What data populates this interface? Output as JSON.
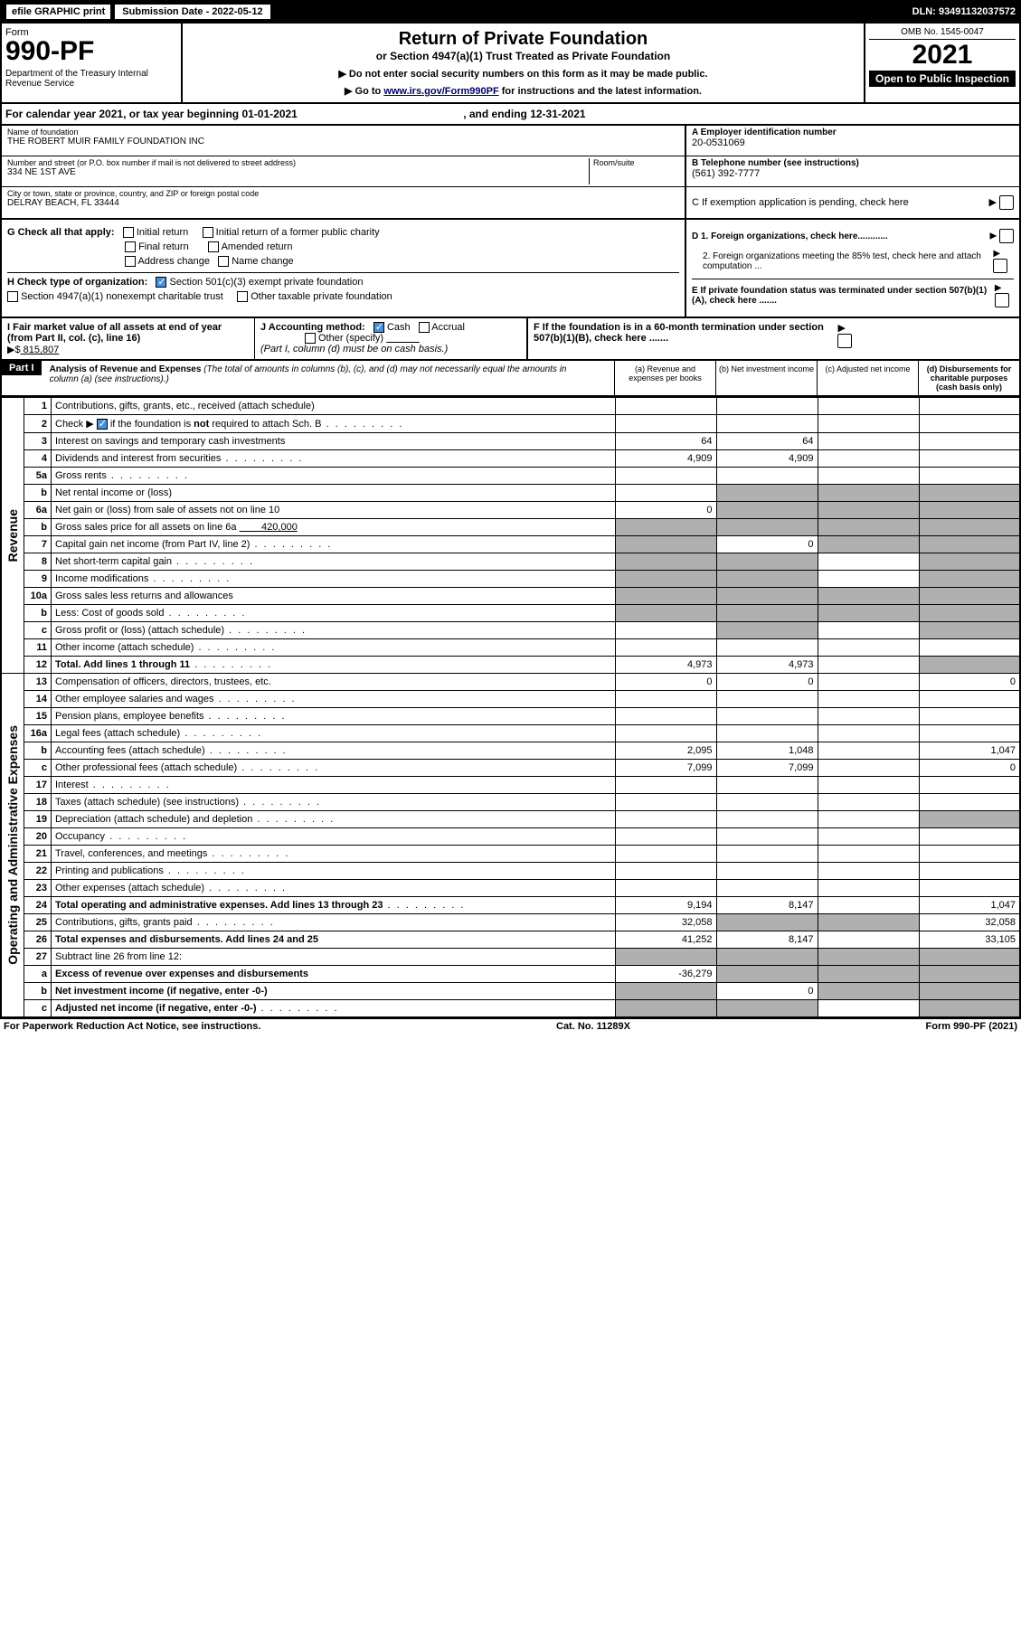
{
  "top": {
    "efile": "efile GRAPHIC print",
    "sub_label": "Submission Date - 2022-05-12",
    "dln": "DLN: 93491132037572"
  },
  "header": {
    "form_label": "Form",
    "form_num": "990-PF",
    "dept": "Department of the Treasury\nInternal Revenue Service",
    "title": "Return of Private Foundation",
    "subtitle": "or Section 4947(a)(1) Trust Treated as Private Foundation",
    "note1": "▶ Do not enter social security numbers on this form as it may be made public.",
    "note2_pre": "▶ Go to ",
    "note2_link": "www.irs.gov/Form990PF",
    "note2_post": " for instructions and the latest information.",
    "omb": "OMB No. 1545-0047",
    "year": "2021",
    "open": "Open to Public Inspection"
  },
  "cal_year": {
    "pre": "For calendar year 2021, or tax year beginning ",
    "begin": "01-01-2021",
    "mid": ", and ending ",
    "end": "12-31-2021"
  },
  "info": {
    "name_lbl": "Name of foundation",
    "name_val": "THE ROBERT MUIR FAMILY FOUNDATION INC",
    "addr_lbl": "Number and street (or P.O. box number if mail is not delivered to street address)",
    "addr_val": "334 NE 1ST AVE",
    "room_lbl": "Room/suite",
    "city_lbl": "City or town, state or province, country, and ZIP or foreign postal code",
    "city_val": "DELRAY BEACH, FL  33444",
    "ein_lbl": "A Employer identification number",
    "ein_val": "20-0531069",
    "tel_lbl": "B Telephone number (see instructions)",
    "tel_val": "(561) 392-7777",
    "c_lbl": "C If exemption application is pending, check here"
  },
  "g": {
    "label": "G Check all that apply:",
    "opts": [
      "Initial return",
      "Final return",
      "Address change",
      "Initial return of a former public charity",
      "Amended return",
      "Name change"
    ]
  },
  "h": {
    "label": "H Check type of organization:",
    "opt1": "Section 501(c)(3) exempt private foundation",
    "opt2": "Section 4947(a)(1) nonexempt charitable trust",
    "opt3": "Other taxable private foundation"
  },
  "i": {
    "label": "I Fair market value of all assets at end of year (from Part II, col. (c), line 16)",
    "arrow": "▶$",
    "val": "  815,807"
  },
  "j": {
    "label": "J Accounting method:",
    "cash": "Cash",
    "accrual": "Accrual",
    "other": "Other (specify)",
    "note": "(Part I, column (d) must be on cash basis.)"
  },
  "right_checks": {
    "d1": "D 1. Foreign organizations, check here............",
    "d2": "2. Foreign organizations meeting the 85% test, check here and attach computation ...",
    "e": "E  If private foundation status was terminated under section 507(b)(1)(A), check here .......",
    "f": "F  If the foundation is in a 60-month termination under section 507(b)(1)(B), check here .......",
    "c": "C If exemption application is pending, check here"
  },
  "part1": {
    "hdr": "Part I",
    "title": "Analysis of Revenue and Expenses",
    "title_note": " (The total of amounts in columns (b), (c), and (d) may not necessarily equal the amounts in column (a) (see instructions).)",
    "col_a": "(a) Revenue and expenses per books",
    "col_b": "(b) Net investment income",
    "col_c": "(c) Adjusted net income",
    "col_d": "(d) Disbursements for charitable purposes (cash basis only)"
  },
  "side": {
    "rev": "Revenue",
    "exp": "Operating and Administrative Expenses"
  },
  "rows": [
    {
      "n": "1",
      "t": "Contributions, gifts, grants, etc., received (attach schedule)",
      "a": "",
      "b": "",
      "c": "",
      "d": ""
    },
    {
      "n": "2",
      "t": "Check ▶ ☑ if the foundation is not required to attach Sch. B",
      "dots": true,
      "a": "",
      "b": "",
      "c": "",
      "d": ""
    },
    {
      "n": "3",
      "t": "Interest on savings and temporary cash investments",
      "a": "64",
      "b": "64",
      "c": "",
      "d": ""
    },
    {
      "n": "4",
      "t": "Dividends and interest from securities",
      "dots": true,
      "a": "4,909",
      "b": "4,909",
      "c": "",
      "d": ""
    },
    {
      "n": "5a",
      "t": "Gross rents",
      "dots": true,
      "a": "",
      "b": "",
      "c": "",
      "d": ""
    },
    {
      "n": "b",
      "t": "Net rental income or (loss)",
      "a": "",
      "b": "",
      "c": "",
      "d": "",
      "shade_bcd": true
    },
    {
      "n": "6a",
      "t": "Net gain or (loss) from sale of assets not on line 10",
      "a": "0",
      "b": "",
      "c": "",
      "d": "",
      "shade_bcd": true
    },
    {
      "n": "b",
      "t": "Gross sales price for all assets on line 6a",
      "extra": "420,000",
      "a": "",
      "b": "",
      "c": "",
      "d": "",
      "shade_all": true
    },
    {
      "n": "7",
      "t": "Capital gain net income (from Part IV, line 2)",
      "dots": true,
      "a": "",
      "b": "0",
      "c": "",
      "d": "",
      "shade_a": true,
      "shade_cd": true
    },
    {
      "n": "8",
      "t": "Net short-term capital gain",
      "dots": true,
      "a": "",
      "b": "",
      "c": "",
      "d": "",
      "shade_ab": true,
      "shade_d": true
    },
    {
      "n": "9",
      "t": "Income modifications",
      "dots": true,
      "a": "",
      "b": "",
      "c": "",
      "d": "",
      "shade_ab": true,
      "shade_d": true
    },
    {
      "n": "10a",
      "t": "Gross sales less returns and allowances",
      "a": "",
      "b": "",
      "c": "",
      "d": "",
      "shade_all": true
    },
    {
      "n": "b",
      "t": "Less: Cost of goods sold",
      "dots": true,
      "a": "",
      "b": "",
      "c": "",
      "d": "",
      "shade_all": true
    },
    {
      "n": "c",
      "t": "Gross profit or (loss) (attach schedule)",
      "dots": true,
      "a": "",
      "b": "",
      "c": "",
      "d": "",
      "shade_b": true,
      "shade_d": true
    },
    {
      "n": "11",
      "t": "Other income (attach schedule)",
      "dots": true,
      "a": "",
      "b": "",
      "c": "",
      "d": ""
    },
    {
      "n": "12",
      "t": "Total. Add lines 1 through 11",
      "dots": true,
      "bold": true,
      "a": "4,973",
      "b": "4,973",
      "c": "",
      "d": "",
      "shade_d": true
    },
    {
      "n": "13",
      "t": "Compensation of officers, directors, trustees, etc.",
      "a": "0",
      "b": "0",
      "c": "",
      "d": "0"
    },
    {
      "n": "14",
      "t": "Other employee salaries and wages",
      "dots": true,
      "a": "",
      "b": "",
      "c": "",
      "d": ""
    },
    {
      "n": "15",
      "t": "Pension plans, employee benefits",
      "dots": true,
      "a": "",
      "b": "",
      "c": "",
      "d": ""
    },
    {
      "n": "16a",
      "t": "Legal fees (attach schedule)",
      "dots": true,
      "a": "",
      "b": "",
      "c": "",
      "d": ""
    },
    {
      "n": "b",
      "t": "Accounting fees (attach schedule)",
      "dots": true,
      "a": "2,095",
      "b": "1,048",
      "c": "",
      "d": "1,047"
    },
    {
      "n": "c",
      "t": "Other professional fees (attach schedule)",
      "dots": true,
      "a": "7,099",
      "b": "7,099",
      "c": "",
      "d": "0"
    },
    {
      "n": "17",
      "t": "Interest",
      "dots": true,
      "a": "",
      "b": "",
      "c": "",
      "d": ""
    },
    {
      "n": "18",
      "t": "Taxes (attach schedule) (see instructions)",
      "dots": true,
      "a": "",
      "b": "",
      "c": "",
      "d": ""
    },
    {
      "n": "19",
      "t": "Depreciation (attach schedule) and depletion",
      "dots": true,
      "a": "",
      "b": "",
      "c": "",
      "d": "",
      "shade_d": true
    },
    {
      "n": "20",
      "t": "Occupancy",
      "dots": true,
      "a": "",
      "b": "",
      "c": "",
      "d": ""
    },
    {
      "n": "21",
      "t": "Travel, conferences, and meetings",
      "dots": true,
      "a": "",
      "b": "",
      "c": "",
      "d": ""
    },
    {
      "n": "22",
      "t": "Printing and publications",
      "dots": true,
      "a": "",
      "b": "",
      "c": "",
      "d": ""
    },
    {
      "n": "23",
      "t": "Other expenses (attach schedule)",
      "dots": true,
      "a": "",
      "b": "",
      "c": "",
      "d": ""
    },
    {
      "n": "24",
      "t": "Total operating and administrative expenses. Add lines 13 through 23",
      "dots": true,
      "bold": true,
      "a": "9,194",
      "b": "8,147",
      "c": "",
      "d": "1,047"
    },
    {
      "n": "25",
      "t": "Contributions, gifts, grants paid",
      "dots": true,
      "a": "32,058",
      "b": "",
      "c": "",
      "d": "32,058",
      "shade_bc": true
    },
    {
      "n": "26",
      "t": "Total expenses and disbursements. Add lines 24 and 25",
      "bold": true,
      "a": "41,252",
      "b": "8,147",
      "c": "",
      "d": "33,105"
    },
    {
      "n": "27",
      "t": "Subtract line 26 from line 12:",
      "a": "",
      "b": "",
      "c": "",
      "d": "",
      "shade_all": true
    },
    {
      "n": "a",
      "t": "Excess of revenue over expenses and disbursements",
      "bold": true,
      "a": "-36,279",
      "b": "",
      "c": "",
      "d": "",
      "shade_bcd": true
    },
    {
      "n": "b",
      "t": "Net investment income (if negative, enter -0-)",
      "bold": true,
      "a": "",
      "b": "0",
      "c": "",
      "d": "",
      "shade_a": true,
      "shade_cd": true
    },
    {
      "n": "c",
      "t": "Adjusted net income (if negative, enter -0-)",
      "dots": true,
      "bold": true,
      "a": "",
      "b": "",
      "c": "",
      "d": "",
      "shade_ab": true,
      "shade_d": true
    }
  ],
  "footer": {
    "left": "For Paperwork Reduction Act Notice, see instructions.",
    "mid": "Cat. No. 11289X",
    "right": "Form 990-PF (2021)"
  },
  "colors": {
    "shade": "#b0b0b0",
    "black": "#000000",
    "link": "#0000cc",
    "check": "#4a90d9"
  }
}
